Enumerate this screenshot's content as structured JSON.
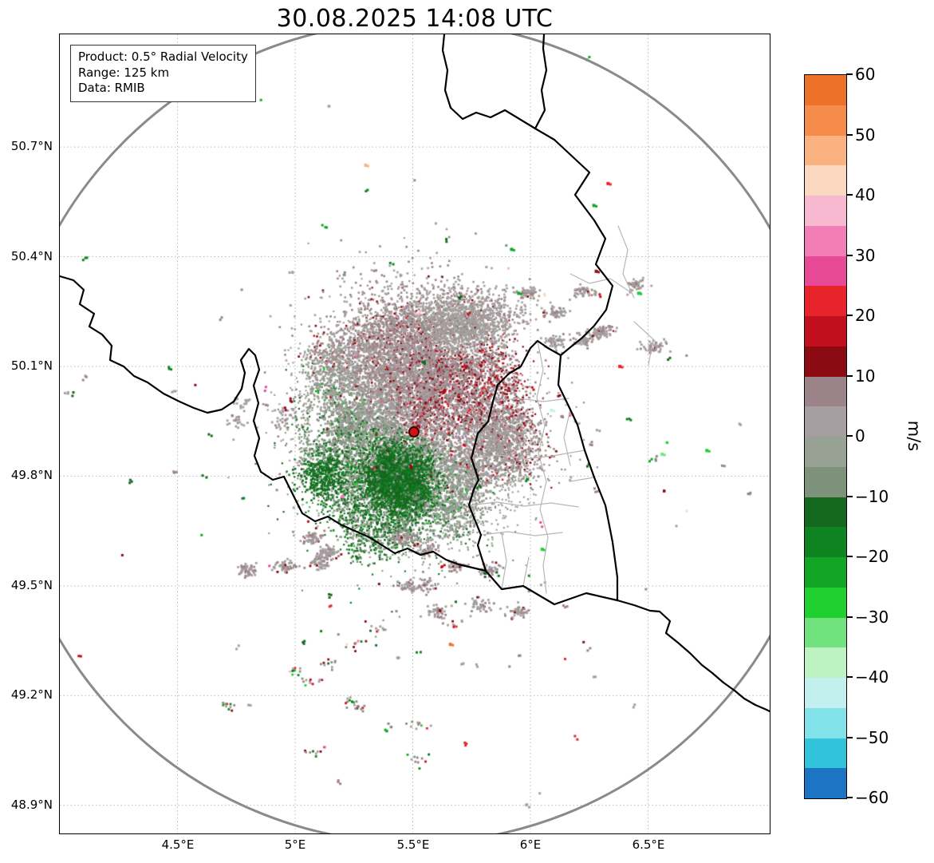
{
  "title": "30.08.2025 14:08 UTC",
  "info_box": {
    "product": "Product: 0.5° Radial Velocity",
    "range": "Range: 125 km",
    "data": "Data: RMIB"
  },
  "axes": {
    "lon_range": [
      4.0,
      7.017
    ],
    "lat_range": [
      48.823,
      51.008
    ],
    "x_ticks": [
      {
        "lon": 4.5,
        "label": "4.5°E"
      },
      {
        "lon": 5.0,
        "label": "5°E"
      },
      {
        "lon": 5.5,
        "label": "5.5°E"
      },
      {
        "lon": 6.0,
        "label": "6°E"
      },
      {
        "lon": 6.5,
        "label": "6.5°E"
      }
    ],
    "y_ticks": [
      {
        "lat": 50.7,
        "label": "50.7°N"
      },
      {
        "lat": 50.4,
        "label": "50.4°N"
      },
      {
        "lat": 50.1,
        "label": "50.1°N"
      },
      {
        "lat": 49.8,
        "label": "49.8°N"
      },
      {
        "lat": 49.5,
        "label": "49.5°N"
      },
      {
        "lat": 49.2,
        "label": "49.2°N"
      },
      {
        "lat": 48.9,
        "label": "48.9°N"
      }
    ]
  },
  "colorbar": {
    "label": "m/s",
    "min": -60,
    "max": 60,
    "step": 5,
    "ticks": [
      60,
      50,
      40,
      30,
      20,
      10,
      0,
      -10,
      -20,
      -30,
      -40,
      -50,
      -60
    ],
    "colors_top_to_bottom": [
      "#ee7129",
      "#f68c4a",
      "#f9b280",
      "#fbd8c0",
      "#f8b8d0",
      "#f27eb6",
      "#e84a98",
      "#e6242a",
      "#c20f1d",
      "#8c0a12",
      "#9c8289",
      "#a79ea1",
      "#97a294",
      "#7e927b",
      "#15691f",
      "#0e8420",
      "#12a626",
      "#1fd02f",
      "#72e27e",
      "#bff2c3",
      "#c3f0ee",
      "#82e2ea",
      "#30c3db",
      "#1c74c4"
    ]
  },
  "radar_marker": {
    "lon": 5.505,
    "lat": 49.92,
    "color": "#d31414",
    "edge": "#3d0404"
  },
  "range_ring": {
    "km": 125,
    "color": "#8a8a8a"
  },
  "chart_data": {
    "type": "heatmap",
    "title": "30.08.2025 14:08 UTC",
    "product": "0.5° Radial Velocity",
    "source": "RMIB",
    "units": "m/s",
    "value_range": [
      -60,
      60
    ],
    "colorbar_ticks": [
      60,
      50,
      40,
      30,
      20,
      10,
      0,
      -10,
      -20,
      -30,
      -40,
      -50,
      -60
    ],
    "x_tick_labels": [
      "4.5°E",
      "5°E",
      "5.5°E",
      "6°E",
      "6.5°E"
    ],
    "y_tick_labels": [
      "50.7°N",
      "50.4°N",
      "50.1°N",
      "49.8°N",
      "49.5°N",
      "49.2°N",
      "48.9°N"
    ],
    "radar_site": {
      "lon": 5.505,
      "lat": 49.92
    },
    "range_ring_km": 125,
    "features": [
      {
        "id": "velocity-couplet",
        "lon": 5.505,
        "lat": 49.92,
        "radius_km": 33,
        "n": 9500,
        "desc": "Doppler velocity couplet centred on the radar: inbound (green, -5 to -20 m/s) to the SW, weak outbound (grey-mauve with dark-red speckle, 0 to +15 m/s) to the N and E"
      },
      {
        "id": "inbound-core",
        "lon": 5.44,
        "lat": 49.79,
        "s_km": 5,
        "v": -13,
        "dv": 2.5,
        "n": 2600,
        "desc": "dense dark-green inbound core SSW of the radar"
      },
      {
        "id": "outbound-haze",
        "lon": 5.48,
        "lat": 50.09,
        "s_km": 13,
        "v": 4,
        "dv": 3.5,
        "n": 2400,
        "desc": "grey-mauve weak outbound echo north of the radar"
      },
      {
        "id": "stratiform-patch-n",
        "lon": 5.7,
        "lat": 50.22,
        "sx_km": 9,
        "sy_km": 5,
        "v": 2,
        "dv": 3,
        "n": 1400,
        "desc": "grey echo patch north-northeast of the radar"
      },
      {
        "id": "patch-e",
        "lon": 5.85,
        "lat": 49.91,
        "s_km": 4,
        "v": 3,
        "dv": 3,
        "n": 450,
        "desc": "small grey patch east of the radar"
      },
      {
        "id": "patches-ne",
        "lon": 6.24,
        "lat": 50.25,
        "sx_km": 14,
        "sy_km": 9,
        "v": 3,
        "dv": 3,
        "n": 420,
        "blocks": 9,
        "desc": "blocky grey clutter patches over the NE (German border area)"
      },
      {
        "id": "streaks-sw",
        "lon": 5.12,
        "lat": 49.59,
        "sx_km": 15,
        "sy_km": 3,
        "v": 4,
        "dv": 3,
        "n": 330,
        "blocks": 6,
        "desc": "elongated grey clutter streaks SW of the radar"
      },
      {
        "id": "clutter-chain-s",
        "lon": 5.75,
        "lat": 49.5,
        "sx_km": 13,
        "sy_km": 8,
        "v": 4,
        "dv": 3,
        "n": 330,
        "blocks": 8,
        "desc": "chain of grey clutter blobs south-southeast of the radar"
      },
      {
        "id": "specks-far-s",
        "lon": 5.25,
        "lat": 49.3,
        "sx_km": 18,
        "sy_km": 14,
        "n": 110,
        "blocks": 12,
        "desc": "sparse mixed-colour specks far south of the radar"
      },
      {
        "id": "inbound-blob-w",
        "lon": 5.12,
        "lat": 49.8,
        "s_km": 3.5,
        "v": -14,
        "dv": 2,
        "n": 260,
        "desc": "small dark-green inbound blob on the French border WSW of the radar"
      },
      {
        "id": "specks-w",
        "lon": 4.95,
        "lat": 49.96,
        "sx_km": 8,
        "sy_km": 3,
        "v": 3,
        "dv": 2,
        "n": 70,
        "blocks": 4,
        "desc": "few grey specks west of the radar"
      }
    ],
    "specks": [
      [
        6.33,
        50.6,
        22
      ],
      [
        6.27,
        50.54,
        -24
      ],
      [
        5.3,
        50.65,
        46
      ],
      [
        6.46,
        50.3,
        -26
      ],
      [
        6.75,
        49.87,
        -27
      ],
      [
        6.56,
        49.86,
        -30
      ],
      [
        6.17,
        49.97,
        34
      ],
      [
        6.09,
        49.98,
        -44
      ],
      [
        5.66,
        49.34,
        56
      ],
      [
        5.92,
        50.42,
        -22
      ],
      [
        6.38,
        50.1,
        22
      ],
      [
        6.05,
        49.6,
        -25
      ],
      [
        5.95,
        50.3,
        -20
      ],
      [
        6.28,
        50.36,
        14
      ]
    ]
  }
}
